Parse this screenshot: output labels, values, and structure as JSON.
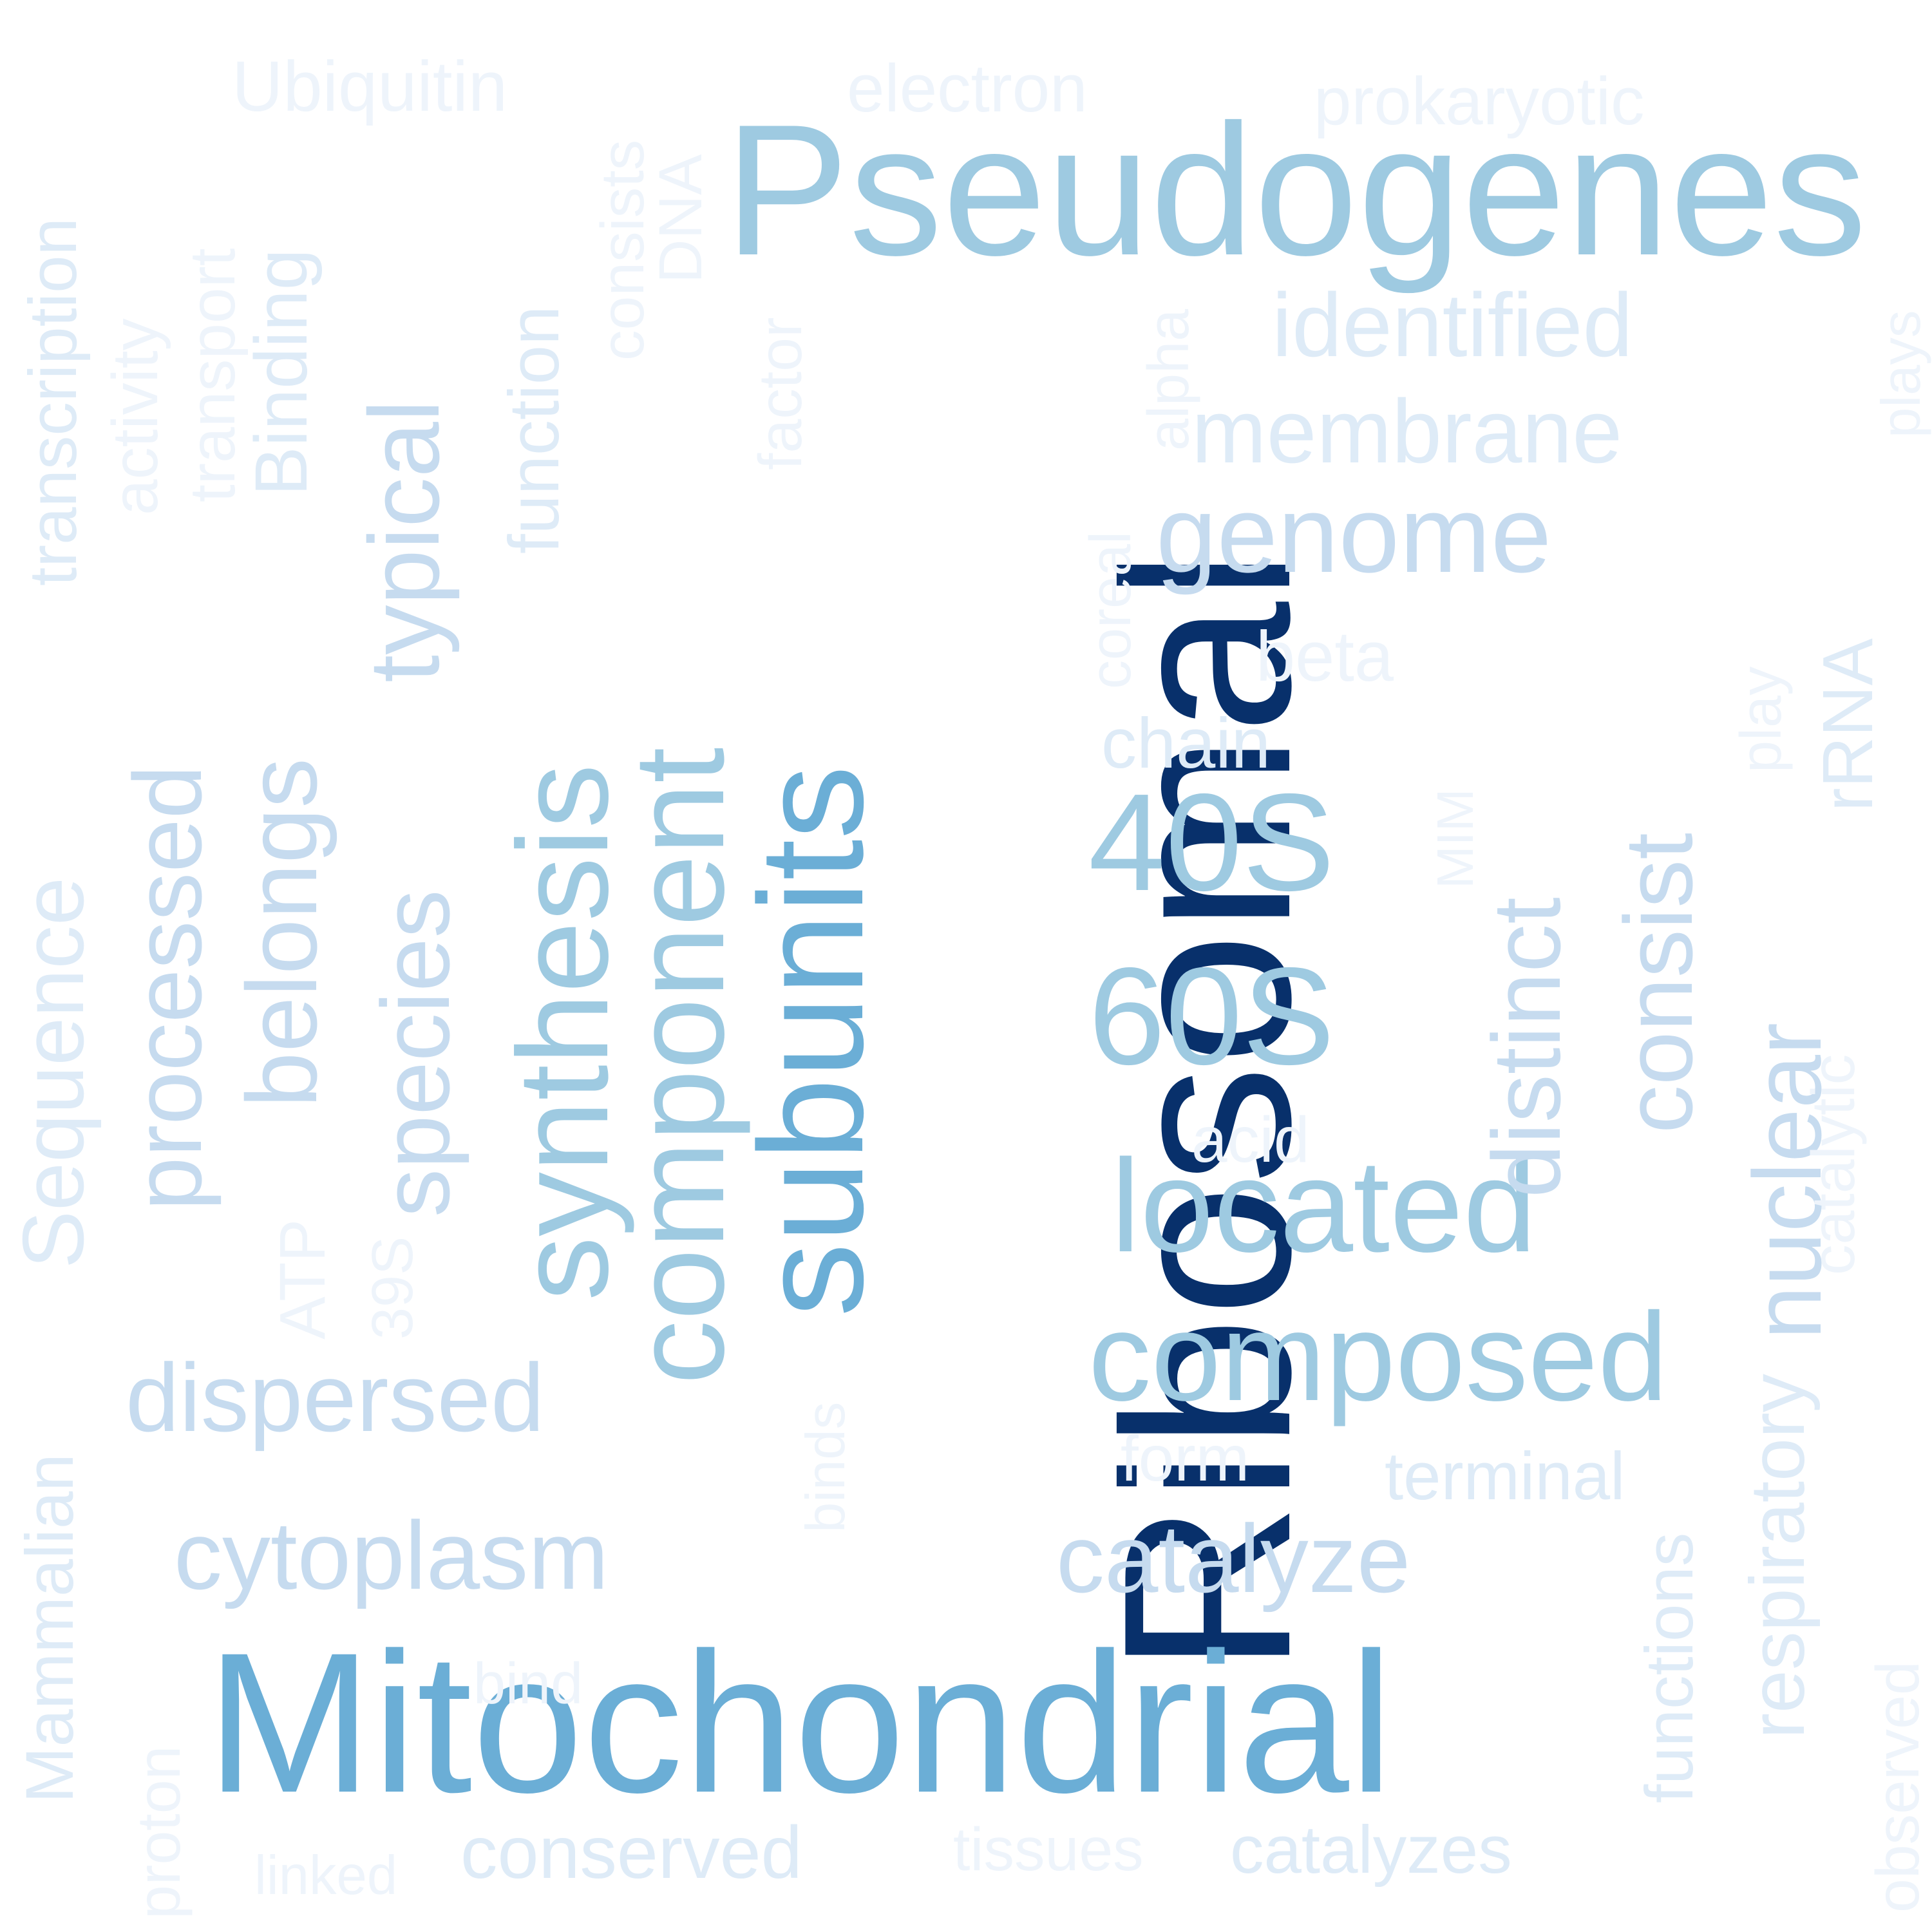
{
  "palette": {
    "c1": "#08306b",
    "c2": "#6baed6",
    "c3": "#9ecae1",
    "c4": "#c6dbef",
    "c5": "#deebf7",
    "c6": "#eef4fb"
  },
  "words": [
    {
      "text": "Ribosomal",
      "color": "c1"
    },
    {
      "text": "Pseudogenes",
      "color": "c3"
    },
    {
      "text": "Mitochondrial",
      "color": "c2"
    },
    {
      "text": "subunits",
      "color": "c2"
    },
    {
      "text": "component",
      "color": "c3"
    },
    {
      "text": "synthesis",
      "color": "c3"
    },
    {
      "text": "40S",
      "color": "c3"
    },
    {
      "text": "60S",
      "color": "c3"
    },
    {
      "text": "located",
      "color": "c3"
    },
    {
      "text": "composed",
      "color": "c3"
    },
    {
      "text": "genome",
      "color": "c4"
    },
    {
      "text": "distinct",
      "color": "c4"
    },
    {
      "text": "consist",
      "color": "c4"
    },
    {
      "text": "nuclear",
      "color": "c4"
    },
    {
      "text": "processed",
      "color": "c4"
    },
    {
      "text": "belongs",
      "color": "c4"
    },
    {
      "text": "species",
      "color": "c4"
    },
    {
      "text": "typical",
      "color": "c4"
    },
    {
      "text": "dispersed",
      "color": "c4"
    },
    {
      "text": "cytoplasm",
      "color": "c4"
    },
    {
      "text": "catalyze",
      "color": "c4"
    },
    {
      "text": "membrane",
      "color": "c5"
    },
    {
      "text": "identified",
      "color": "c5"
    },
    {
      "text": "Sequence",
      "color": "c5"
    },
    {
      "text": "Binding",
      "color": "c5"
    },
    {
      "text": "function",
      "color": "c5"
    },
    {
      "text": "respiratory",
      "color": "c5"
    },
    {
      "text": "rRNA",
      "color": "c5"
    },
    {
      "text": "chain",
      "color": "c5"
    },
    {
      "text": "transcription",
      "color": "c5"
    },
    {
      "text": "Mammalian",
      "color": "c5"
    },
    {
      "text": "catalyzes",
      "color": "c5"
    },
    {
      "text": "terminal",
      "color": "c5"
    },
    {
      "text": "functions",
      "color": "c5"
    },
    {
      "text": "conserved",
      "color": "c5"
    },
    {
      "text": "Ubiquitin",
      "color": "c6"
    },
    {
      "text": "electron",
      "color": "c6"
    },
    {
      "text": "prokaryotic",
      "color": "c6"
    },
    {
      "text": "activity",
      "color": "c6"
    },
    {
      "text": "transport",
      "color": "c6"
    },
    {
      "text": "consists",
      "color": "c6"
    },
    {
      "text": "DNA",
      "color": "c6"
    },
    {
      "text": "factor",
      "color": "c6"
    },
    {
      "text": "coreal",
      "color": "c6"
    },
    {
      "text": "alpha",
      "color": "c6"
    },
    {
      "text": "beta",
      "color": "c6"
    },
    {
      "text": "play",
      "color": "c6"
    },
    {
      "text": "plays",
      "color": "c6"
    },
    {
      "text": "MIM",
      "color": "c6"
    },
    {
      "text": "acid",
      "color": "c6"
    },
    {
      "text": "ATP",
      "color": "c6"
    },
    {
      "text": "39S",
      "color": "c6"
    },
    {
      "text": "binds",
      "color": "c6"
    },
    {
      "text": "form",
      "color": "c6"
    },
    {
      "text": "catalytic",
      "color": "c6"
    },
    {
      "text": "observed",
      "color": "c6"
    },
    {
      "text": "bind",
      "color": "c6"
    },
    {
      "text": "proton",
      "color": "c6"
    },
    {
      "text": "linked",
      "color": "c6"
    },
    {
      "text": "tissues",
      "color": "c6"
    }
  ]
}
